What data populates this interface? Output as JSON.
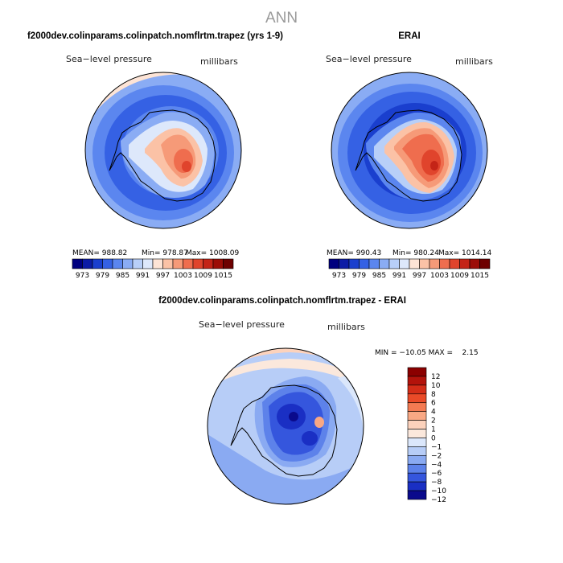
{
  "page_title": "ANN",
  "chart_data": [
    {
      "type": "heatmap",
      "title": "f2000dev.colinparams.colinpatch.nomflrtm.trapez (yrs 1-9)",
      "variable_label": "Sea−level pressure",
      "units_label": "millibars",
      "projection": "south-polar stereographic",
      "stats": {
        "mean": "988.82",
        "min": "978.87",
        "max": "1008.09"
      },
      "stats_text": {
        "mean": "MEAN= 988.82",
        "min": "Min= 978.87",
        "max": "Max= 1008.09"
      },
      "colorbar_ticks": [
        "973",
        "979",
        "985",
        "991",
        "997",
        "1003",
        "1009",
        "1015"
      ]
    },
    {
      "type": "heatmap",
      "title": "ERAI",
      "variable_label": "Sea−level pressure",
      "units_label": "millibars",
      "projection": "south-polar stereographic",
      "stats": {
        "mean": "990.43",
        "min": "980.24",
        "max": "1014.14"
      },
      "stats_text": {
        "mean": "MEAN= 990.43",
        "min": "Min= 980.24",
        "max": "Max= 1014.14"
      },
      "colorbar_ticks": [
        "973",
        "979",
        "985",
        "991",
        "997",
        "1003",
        "1009",
        "1015"
      ]
    },
    {
      "type": "heatmap",
      "title": "f2000dev.colinparams.colinpatch.nomflrtm.trapez - ERAI",
      "variable_label": "Sea−level pressure",
      "units_label": "millibars",
      "projection": "south-polar stereographic",
      "stats_text": "MIN = −10.05 MAX =    2.15",
      "stats": {
        "min": -10.05,
        "max": 2.15
      },
      "colorbar_ticks": [
        "12",
        "10",
        "8",
        "6",
        "4",
        "2",
        "1",
        "0",
        "−1",
        "−2",
        "−4",
        "−6",
        "−8",
        "−10",
        "−12"
      ]
    }
  ],
  "colors": {
    "abs_scale": [
      "#00007f",
      "#0c1ca6",
      "#1a3fce",
      "#3561e4",
      "#5b86ef",
      "#8aacf4",
      "#b8cff8",
      "#dde8fb",
      "#fde4d6",
      "#fbc2a6",
      "#f69a78",
      "#ef6d4e",
      "#e0442c",
      "#c42417",
      "#9c0d07",
      "#6e0000"
    ],
    "diff_scale": [
      "#8b0000",
      "#b3130b",
      "#d42d18",
      "#ea4a28",
      "#f47a52",
      "#f9a884",
      "#fcd2bc",
      "#fbe8dc",
      "#dbe7fb",
      "#b7cdf7",
      "#8aaaf2",
      "#5d82ea",
      "#3556dd",
      "#1a2fc4",
      "#0a0a8c"
    ]
  }
}
